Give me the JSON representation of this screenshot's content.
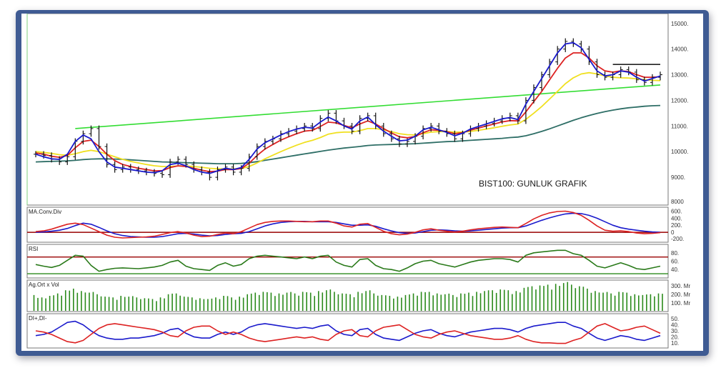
{
  "chart_data": [
    {
      "type": "line",
      "panel": "price",
      "annotation": "BIST100: GUNLUK GRAFIK",
      "ylim": [
        8000,
        15300
      ],
      "y_ticks": [
        "15000.",
        "14000.",
        "13000.",
        "12000.",
        "11000.",
        "10000.",
        "9000.",
        "8000"
      ],
      "ohlc_close_approx": [
        9900,
        9850,
        9700,
        9600,
        9800,
        10400,
        10700,
        10900,
        10200,
        9500,
        9300,
        9400,
        9300,
        9250,
        9200,
        9150,
        9100,
        9600,
        9700,
        9500,
        9300,
        9200,
        9000,
        9300,
        9400,
        9200,
        9350,
        9800,
        10200,
        10400,
        10500,
        10700,
        10800,
        10900,
        11000,
        10900,
        11300,
        11500,
        11200,
        11000,
        10800,
        11300,
        11400,
        11000,
        10700,
        10500,
        10300,
        10400,
        10600,
        10900,
        11000,
        10800,
        10700,
        10500,
        10700,
        10900,
        11000,
        11100,
        11200,
        11300,
        11400,
        11200,
        12000,
        12500,
        13000,
        13500,
        14000,
        14300,
        14200,
        14000,
        13500,
        13000,
        12900,
        13000,
        13200,
        13100,
        12800,
        12700,
        12900,
        13000
      ],
      "series": [
        {
          "color": "#1a1acc",
          "values": [
            9900,
            9800,
            9720,
            9700,
            9900,
            10400,
            10650,
            10500,
            10000,
            9600,
            9400,
            9350,
            9300,
            9250,
            9200,
            9180,
            9250,
            9500,
            9550,
            9450,
            9300,
            9200,
            9150,
            9250,
            9350,
            9300,
            9380,
            9700,
            10100,
            10350,
            10500,
            10650,
            10780,
            10880,
            10950,
            10920,
            11150,
            11350,
            11200,
            11000,
            10880,
            11200,
            11350,
            11050,
            10800,
            10600,
            10420,
            10450,
            10600,
            10850,
            10950,
            10850,
            10750,
            10620,
            10720,
            10880,
            10980,
            11080,
            11180,
            11280,
            11330,
            11250,
            11850,
            12350,
            12850,
            13350,
            13850,
            14200,
            14250,
            14050,
            13600,
            13150,
            12950,
            13000,
            13150,
            13100,
            12900,
            12750,
            12850,
            12950
          ]
        },
        {
          "color": "#dd2222",
          "values": [
            9950,
            9900,
            9820,
            9780,
            9850,
            10150,
            10400,
            10450,
            10200,
            9900,
            9650,
            9500,
            9420,
            9350,
            9300,
            9250,
            9260,
            9380,
            9450,
            9420,
            9350,
            9280,
            9220,
            9240,
            9300,
            9300,
            9340,
            9550,
            9850,
            10100,
            10280,
            10450,
            10580,
            10700,
            10800,
            10830,
            10980,
            11150,
            11120,
            11020,
            10930,
            11080,
            11200,
            11080,
            10900,
            10730,
            10580,
            10540,
            10590,
            10740,
            10850,
            10830,
            10780,
            10700,
            10740,
            10840,
            10920,
            11000,
            11080,
            11160,
            11210,
            11200,
            11550,
            11950,
            12350,
            12800,
            13250,
            13650,
            13850,
            13850,
            13650,
            13350,
            13150,
            13100,
            13150,
            13120,
            13000,
            12900,
            12900,
            12920
          ]
        },
        {
          "color": "#f0e020",
          "values": [
            10000,
            9970,
            9930,
            9880,
            9860,
            9920,
            10000,
            10050,
            10000,
            9900,
            9800,
            9700,
            9620,
            9560,
            9500,
            9450,
            9420,
            9420,
            9440,
            9440,
            9420,
            9390,
            9350,
            9330,
            9330,
            9330,
            9340,
            9420,
            9560,
            9720,
            9860,
            10000,
            10130,
            10250,
            10360,
            10440,
            10550,
            10680,
            10740,
            10760,
            10760,
            10820,
            10900,
            10900,
            10850,
            10780,
            10700,
            10660,
            10650,
            10700,
            10760,
            10780,
            10780,
            10760,
            10760,
            10790,
            10830,
            10880,
            10930,
            10990,
            11040,
            11080,
            11260,
            11500,
            11760,
            12050,
            12350,
            12650,
            12880,
            13030,
            13080,
            13030,
            12950,
            12900,
            12880,
            12870,
            12840,
            12800,
            12780,
            12770
          ]
        },
        {
          "color": "#2e6e66",
          "values": [
            9600,
            9610,
            9620,
            9630,
            9640,
            9660,
            9690,
            9710,
            9720,
            9720,
            9710,
            9700,
            9680,
            9660,
            9640,
            9620,
            9600,
            9590,
            9580,
            9570,
            9560,
            9550,
            9540,
            9530,
            9530,
            9530,
            9540,
            9570,
            9610,
            9660,
            9710,
            9760,
            9810,
            9860,
            9910,
            9960,
            10010,
            10060,
            10100,
            10140,
            10170,
            10200,
            10240,
            10260,
            10270,
            10280,
            10290,
            10300,
            10310,
            10330,
            10350,
            10370,
            10390,
            10400,
            10420,
            10440,
            10460,
            10480,
            10500,
            10520,
            10550,
            10570,
            10620,
            10700,
            10790,
            10890,
            11000,
            11110,
            11220,
            11320,
            11410,
            11490,
            11560,
            11620,
            11670,
            11710,
            11740,
            11770,
            11790,
            11800
          ]
        }
      ],
      "trendlines": [
        {
          "color": "#33dd33",
          "from": [
            5,
            10900
          ],
          "to": [
            79,
            12600
          ]
        },
        {
          "color": "#222222",
          "from": [
            73,
            13400
          ],
          "to": [
            79,
            13400
          ]
        }
      ]
    },
    {
      "type": "line",
      "panel": "macd",
      "title": "MA.Conv.Div",
      "y_ticks": [
        "600.",
        "400.",
        "200.",
        "0",
        "-200."
      ],
      "ylim": [
        -220,
        650
      ],
      "zero_line_color": "#990000",
      "series": [
        {
          "color": "#1a1acc",
          "values": [
            0,
            10,
            30,
            60,
            110,
            190,
            260,
            230,
            140,
            40,
            -40,
            -90,
            -120,
            -130,
            -140,
            -140,
            -120,
            -80,
            -40,
            -30,
            -50,
            -80,
            -100,
            -90,
            -60,
            -40,
            -30,
            20,
            100,
            180,
            240,
            280,
            300,
            310,
            310,
            300,
            300,
            300,
            280,
            240,
            200,
            200,
            210,
            170,
            100,
            40,
            -10,
            -30,
            -20,
            20,
            60,
            70,
            60,
            40,
            30,
            40,
            60,
            80,
            100,
            120,
            130,
            130,
            180,
            260,
            340,
            410,
            470,
            520,
            540,
            530,
            480,
            400,
            300,
            200,
            130,
            90,
            60,
            30,
            10,
            0
          ]
        },
        {
          "color": "#dd2222",
          "values": [
            20,
            40,
            90,
            160,
            230,
            260,
            220,
            120,
            20,
            -80,
            -140,
            -160,
            -150,
            -140,
            -130,
            -110,
            -60,
            -10,
            20,
            -20,
            -80,
            -120,
            -110,
            -60,
            -20,
            -40,
            20,
            120,
            220,
            280,
            310,
            320,
            320,
            310,
            300,
            300,
            320,
            320,
            260,
            180,
            150,
            230,
            250,
            140,
            30,
            -40,
            -70,
            -50,
            0,
            70,
            100,
            60,
            30,
            10,
            30,
            70,
            100,
            120,
            140,
            150,
            140,
            130,
            250,
            380,
            480,
            550,
            590,
            600,
            560,
            480,
            340,
            180,
            60,
            30,
            40,
            20,
            -20,
            -40,
            -30,
            -10
          ]
        }
      ]
    },
    {
      "type": "line",
      "panel": "rsi",
      "title": "RSI",
      "y_ticks": [
        "80.",
        "60.",
        "40."
      ],
      "ylim": [
        25,
        95
      ],
      "level_line": 70,
      "series": [
        {
          "color": "#2a7a1a",
          "values": [
            52,
            48,
            45,
            50,
            62,
            74,
            72,
            50,
            36,
            40,
            43,
            44,
            43,
            42,
            44,
            46,
            50,
            58,
            62,
            48,
            42,
            40,
            38,
            50,
            56,
            48,
            52,
            66,
            72,
            74,
            72,
            70,
            68,
            66,
            70,
            66,
            72,
            74,
            58,
            50,
            46,
            64,
            66,
            50,
            42,
            40,
            36,
            44,
            54,
            60,
            62,
            54,
            50,
            46,
            52,
            58,
            62,
            64,
            66,
            66,
            64,
            58,
            74,
            80,
            82,
            84,
            86,
            86,
            78,
            74,
            62,
            48,
            44,
            50,
            56,
            50,
            42,
            40,
            44,
            48
          ]
        }
      ]
    },
    {
      "type": "bar",
      "panel": "volume",
      "title": "Ag.Ort x Vol",
      "y_ticks": [
        "300. Mr",
        "200. Mr",
        "100. Mr"
      ],
      "ylim": [
        0,
        340
      ],
      "color": "#2a8a1a",
      "values": [
        180,
        150,
        170,
        200,
        240,
        260,
        230,
        210,
        190,
        160,
        150,
        170,
        160,
        150,
        140,
        130,
        150,
        190,
        200,
        160,
        150,
        140,
        130,
        150,
        170,
        150,
        160,
        190,
        210,
        220,
        210,
        200,
        210,
        200,
        220,
        210,
        230,
        240,
        220,
        200,
        190,
        220,
        230,
        200,
        180,
        170,
        160,
        180,
        200,
        220,
        220,
        200,
        190,
        180,
        200,
        210,
        220,
        230,
        240,
        250,
        240,
        230,
        270,
        290,
        300,
        310,
        320,
        330,
        310,
        290,
        260,
        230,
        210,
        200,
        220,
        210,
        190,
        180,
        190,
        200
      ]
    },
    {
      "type": "line",
      "panel": "dmi",
      "title": "DI+,DI-",
      "y_ticks": [
        "50.",
        "40.",
        "30.",
        "20.",
        "10."
      ],
      "ylim": [
        5,
        55
      ],
      "series": [
        {
          "color": "#1a1acc",
          "values": [
            22,
            24,
            28,
            36,
            44,
            46,
            40,
            30,
            22,
            18,
            16,
            16,
            18,
            18,
            20,
            22,
            26,
            32,
            34,
            26,
            20,
            18,
            18,
            24,
            28,
            24,
            28,
            36,
            40,
            42,
            40,
            38,
            36,
            34,
            36,
            34,
            38,
            40,
            30,
            24,
            22,
            32,
            34,
            24,
            18,
            16,
            14,
            20,
            26,
            30,
            32,
            26,
            22,
            20,
            24,
            28,
            30,
            32,
            34,
            34,
            32,
            28,
            34,
            38,
            40,
            42,
            44,
            44,
            38,
            34,
            26,
            18,
            14,
            18,
            22,
            20,
            16,
            14,
            18,
            22
          ]
        },
        {
          "color": "#dd2222",
          "values": [
            30,
            28,
            24,
            18,
            12,
            10,
            14,
            24,
            34,
            40,
            42,
            40,
            38,
            36,
            34,
            32,
            28,
            22,
            20,
            30,
            36,
            38,
            38,
            30,
            24,
            28,
            24,
            18,
            14,
            12,
            14,
            16,
            18,
            20,
            18,
            20,
            16,
            14,
            24,
            30,
            32,
            22,
            20,
            30,
            36,
            38,
            40,
            32,
            24,
            20,
            18,
            24,
            28,
            30,
            26,
            22,
            20,
            18,
            16,
            16,
            18,
            22,
            16,
            12,
            10,
            10,
            9,
            9,
            14,
            18,
            28,
            38,
            42,
            36,
            30,
            32,
            36,
            38,
            32,
            26
          ]
        }
      ]
    }
  ]
}
